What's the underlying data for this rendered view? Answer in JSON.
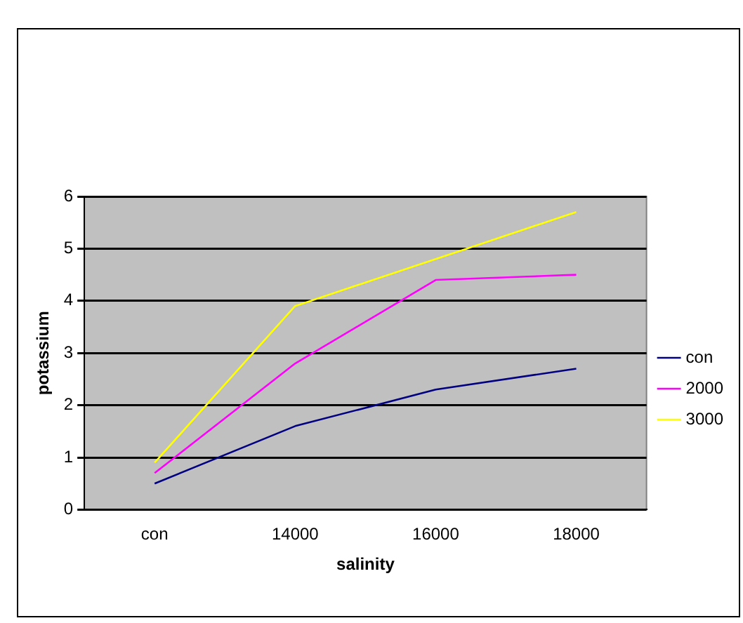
{
  "chart_data": {
    "type": "line",
    "xlabel": "salinity",
    "ylabel": "potassium",
    "categories": [
      "con",
      "14000",
      "16000",
      "18000"
    ],
    "series": [
      {
        "name": "con",
        "color": "#000080",
        "values": [
          0.5,
          1.6,
          2.3,
          2.7
        ]
      },
      {
        "name": "2000",
        "color": "#ff00ff",
        "values": [
          0.7,
          2.8,
          4.4,
          4.5
        ]
      },
      {
        "name": "3000",
        "color": "#ffff00",
        "values": [
          0.9,
          3.9,
          4.8,
          5.7
        ]
      }
    ],
    "ylim": [
      0,
      6
    ],
    "yticks": [
      0,
      1,
      2,
      3,
      4,
      5,
      6
    ],
    "grid": "y",
    "legend": "right",
    "marker": "none"
  }
}
